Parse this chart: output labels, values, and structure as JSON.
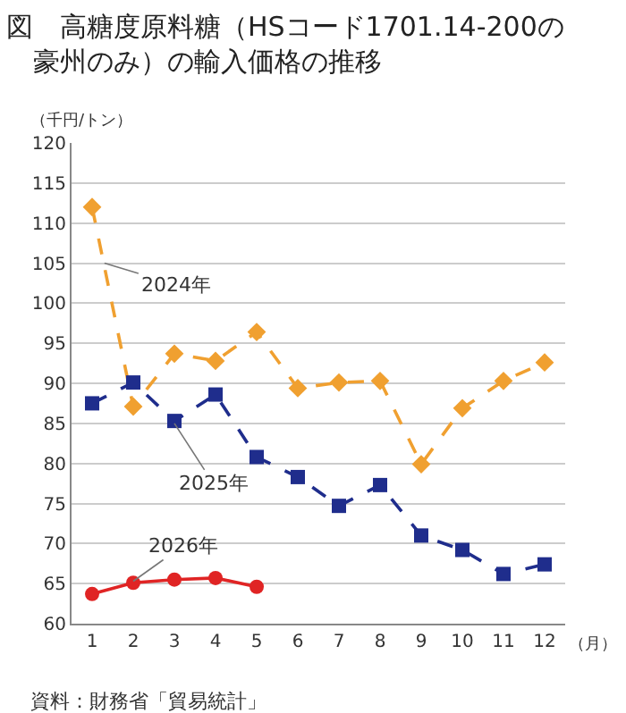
{
  "chart_data": {
    "type": "line",
    "title": "図　高糖度原料糖（HSコード1701.14-200の豪州のみ）の輸入価格の推移",
    "ylabel": "（千円/トン）",
    "xlabel": "（月）",
    "x": [
      1,
      2,
      3,
      4,
      5,
      6,
      7,
      8,
      9,
      10,
      11,
      12
    ],
    "series": [
      {
        "color": "#f0a030",
        "marker": "diamond",
        "line_style": "dashed",
        "values": [
          112,
          87.1,
          93.7,
          92.8,
          96.4,
          89.4,
          90.1,
          90.3,
          79.9,
          86.9,
          90.3,
          92.6
        ]
      },
      {
        "color": "#1f2d8c",
        "marker": "square",
        "line_style": "dashed",
        "values": [
          87.5,
          90.1,
          85.3,
          88.6,
          80.8,
          78.3,
          74.7,
          77.3,
          71.0,
          69.2,
          66.2,
          67.4
        ]
      },
      {
        "color": "#e02424",
        "marker": "circle",
        "line_style": "solid",
        "values": [
          63.7,
          65.1,
          65.5,
          65.7,
          64.6,
          null,
          null,
          null,
          null,
          null,
          null,
          null
        ]
      }
    ],
    "xlim": [
      0.5,
      12.5
    ],
    "xticks": [
      1,
      2,
      3,
      4,
      5,
      6,
      7,
      8,
      9,
      10,
      11,
      12
    ],
    "ylim": [
      60,
      120
    ],
    "yticks": [
      60,
      65,
      70,
      75,
      80,
      85,
      90,
      95,
      100,
      105,
      110,
      115,
      120
    ],
    "grid": "y",
    "annotations": [
      {
        "text": "2024年",
        "x": 1.3,
        "y": 105
      },
      {
        "text": "2025年",
        "x": 3,
        "y": 85
      },
      {
        "text": "2026年",
        "x": 2,
        "y": 65.3
      },
      "資料：財務省「貿易統計」"
    ]
  }
}
